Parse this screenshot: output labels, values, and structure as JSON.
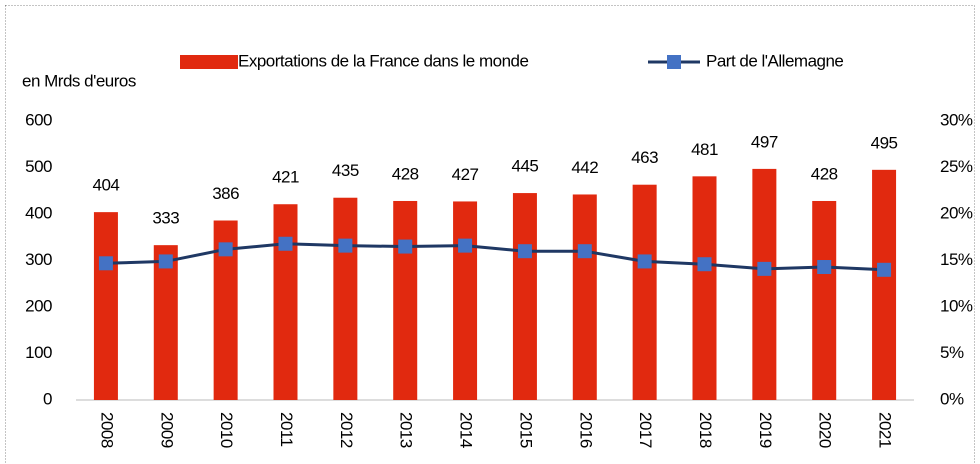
{
  "chart_data": {
    "type": "bar_line",
    "y_label": "en Mrds d'euros",
    "categories": [
      "2008",
      "2009",
      "2010",
      "2011",
      "2012",
      "2013",
      "2014",
      "2015",
      "2016",
      "2017",
      "2018",
      "2019",
      "2020",
      "2021"
    ],
    "series": [
      {
        "name": "Exportations de la France dans le monde",
        "type": "bar",
        "color": "#e1290f",
        "values": [
          404,
          333,
          386,
          421,
          435,
          428,
          427,
          445,
          442,
          463,
          481,
          497,
          428,
          495
        ]
      },
      {
        "name": "Part de l'Allemagne",
        "type": "line",
        "axis": "y2",
        "color": "#1f3864",
        "marker_color": "#4472c4",
        "values": [
          14.7,
          14.9,
          16.2,
          16.8,
          16.6,
          16.5,
          16.6,
          16.0,
          16.0,
          14.9,
          14.6,
          14.1,
          14.3,
          14.0
        ]
      }
    ],
    "ylim": [
      0,
      600
    ],
    "yticks": [
      0,
      100,
      200,
      300,
      400,
      500,
      600
    ],
    "y2lim": [
      0,
      30
    ],
    "y2ticks": [
      {
        "value": 0,
        "label": "0%"
      },
      {
        "value": 5,
        "label": "5%"
      },
      {
        "value": 10,
        "label": "10%"
      },
      {
        "value": 15,
        "label": "15%"
      },
      {
        "value": 20,
        "label": "20%"
      },
      {
        "value": 25,
        "label": "25%"
      },
      {
        "value": 30,
        "label": "30%"
      }
    ],
    "grid": false
  }
}
